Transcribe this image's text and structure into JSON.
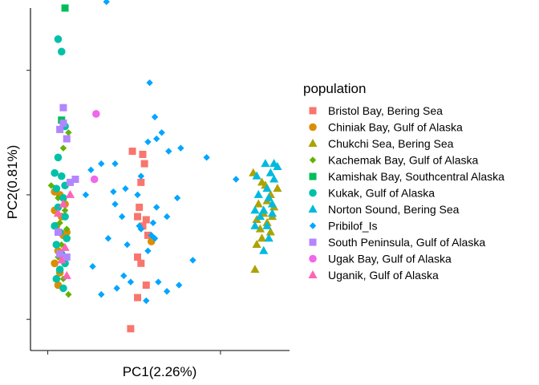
{
  "chart_data": {
    "type": "scatter",
    "xlabel": "PC1(2.26%)",
    "ylabel": "PC2(0.81%)",
    "xlim": [
      -0.1,
      1.4
    ],
    "ylim": [
      -0.1,
      1.0
    ],
    "x_ticks": [
      0.0,
      1.0
    ],
    "y_ticks": [
      0.0,
      0.4,
      0.8
    ],
    "grid": false,
    "legend_title": "population",
    "legend_position": "right",
    "series": [
      {
        "name": "Bristol Bay, Bering Sea",
        "color": "#F8766D",
        "shape": "square",
        "points": [
          [
            0.49,
            0.54
          ],
          [
            0.55,
            0.53
          ],
          [
            0.56,
            0.5
          ],
          [
            0.54,
            0.44
          ],
          [
            0.53,
            0.36
          ],
          [
            0.52,
            0.33
          ],
          [
            0.57,
            0.32
          ],
          [
            0.55,
            0.3
          ],
          [
            0.58,
            0.27
          ],
          [
            0.52,
            0.2
          ],
          [
            0.54,
            0.18
          ],
          [
            0.57,
            0.11
          ],
          [
            0.52,
            0.07
          ],
          [
            0.48,
            -0.03
          ]
        ]
      },
      {
        "name": "Chiniak Bay, Gulf of Alaska",
        "color": "#DB8E00",
        "shape": "circle",
        "points": [
          [
            0.04,
            0.41
          ],
          [
            0.07,
            0.4
          ],
          [
            0.1,
            0.37
          ],
          [
            0.04,
            0.35
          ],
          [
            0.08,
            0.33
          ],
          [
            0.05,
            0.3
          ],
          [
            0.09,
            0.27
          ],
          [
            0.06,
            0.22
          ],
          [
            0.04,
            0.18
          ],
          [
            0.07,
            0.15
          ],
          [
            0.06,
            0.11
          ],
          [
            0.11,
            0.28
          ],
          [
            0.6,
            0.25
          ]
        ]
      },
      {
        "name": "Chukchi Sea, Bering Sea",
        "color": "#AEA200",
        "shape": "triangle",
        "points": [
          [
            1.19,
            0.47
          ],
          [
            1.24,
            0.44
          ],
          [
            1.33,
            0.42
          ],
          [
            1.29,
            0.4
          ],
          [
            1.27,
            0.38
          ],
          [
            1.22,
            0.37
          ],
          [
            1.31,
            0.36
          ],
          [
            1.25,
            0.34
          ],
          [
            1.3,
            0.33
          ],
          [
            1.21,
            0.32
          ],
          [
            1.27,
            0.31
          ],
          [
            1.23,
            0.29
          ],
          [
            1.29,
            0.28
          ],
          [
            1.24,
            0.26
          ],
          [
            1.21,
            0.24
          ],
          [
            1.2,
            0.16
          ],
          [
            1.26,
            0.43
          ]
        ]
      },
      {
        "name": "Kachemak Bay, Gulf of Alaska",
        "color": "#64B200",
        "shape": "diamond",
        "points": [
          [
            0.12,
            0.6
          ],
          [
            0.09,
            0.55
          ],
          [
            0.02,
            0.43
          ],
          [
            0.06,
            0.39
          ],
          [
            0.1,
            0.35
          ],
          [
            0.07,
            0.31
          ],
          [
            0.11,
            0.29
          ],
          [
            0.08,
            0.24
          ],
          [
            0.06,
            0.2
          ],
          [
            0.09,
            0.13
          ],
          [
            0.12,
            0.08
          ]
        ]
      },
      {
        "name": "Kamishak Bay, Southcentral Alaska",
        "color": "#00BD5C",
        "shape": "square",
        "points": [
          [
            0.1,
            1.0
          ],
          [
            0.08,
            0.64
          ]
        ]
      },
      {
        "name": "Kukak, Gulf of Alaska",
        "color": "#00C1A7",
        "shape": "circle",
        "points": [
          [
            0.06,
            0.9
          ],
          [
            0.08,
            0.86
          ],
          [
            0.1,
            0.62
          ],
          [
            0.06,
            0.52
          ],
          [
            0.04,
            0.47
          ],
          [
            0.08,
            0.46
          ],
          [
            0.1,
            0.43
          ],
          [
            0.05,
            0.42
          ],
          [
            0.09,
            0.39
          ],
          [
            0.06,
            0.36
          ],
          [
            0.1,
            0.33
          ],
          [
            0.04,
            0.3
          ],
          [
            0.07,
            0.28
          ],
          [
            0.11,
            0.26
          ],
          [
            0.05,
            0.24
          ],
          [
            0.08,
            0.21
          ],
          [
            0.1,
            0.18
          ],
          [
            0.07,
            0.16
          ],
          [
            0.05,
            0.13
          ],
          [
            0.09,
            0.1
          ]
        ]
      },
      {
        "name": "Norton Sound, Bering Sea",
        "color": "#00BADE",
        "shape": "triangle",
        "points": [
          [
            1.26,
            0.5
          ],
          [
            1.31,
            0.5
          ],
          [
            1.33,
            0.49
          ],
          [
            1.29,
            0.47
          ],
          [
            1.21,
            0.46
          ],
          [
            1.31,
            0.45
          ],
          [
            1.27,
            0.42
          ],
          [
            1.22,
            0.4
          ],
          [
            1.28,
            0.39
          ],
          [
            1.3,
            0.37
          ],
          [
            1.25,
            0.35
          ],
          [
            1.2,
            0.35
          ],
          [
            1.3,
            0.34
          ],
          [
            1.23,
            0.33
          ],
          [
            1.27,
            0.3
          ],
          [
            1.2,
            0.3
          ],
          [
            1.28,
            0.26
          ],
          [
            1.25,
            0.22
          ]
        ]
      },
      {
        "name": "Pribilof_Is",
        "color": "#00A6FF",
        "shape": "diamond",
        "points": [
          [
            0.34,
            1.02
          ],
          [
            0.66,
            1.07
          ],
          [
            0.59,
            0.76
          ],
          [
            0.62,
            0.65
          ],
          [
            0.63,
            0.58
          ],
          [
            0.7,
            0.54
          ],
          [
            0.77,
            0.55
          ],
          [
            0.92,
            0.52
          ],
          [
            0.39,
            0.5
          ],
          [
            0.25,
            0.48
          ],
          [
            0.31,
            0.5
          ],
          [
            0.54,
            0.46
          ],
          [
            0.22,
            0.4
          ],
          [
            0.38,
            0.41
          ],
          [
            0.52,
            0.4
          ],
          [
            1.09,
            0.45
          ],
          [
            0.39,
            0.37
          ],
          [
            0.63,
            0.36
          ],
          [
            0.43,
            0.33
          ],
          [
            0.75,
            0.39
          ],
          [
            0.61,
            0.31
          ],
          [
            0.69,
            0.33
          ],
          [
            0.54,
            0.29
          ],
          [
            0.6,
            0.27
          ],
          [
            0.62,
            0.26
          ],
          [
            0.58,
            0.22
          ],
          [
            0.26,
            0.17
          ],
          [
            0.31,
            0.08
          ],
          [
            0.44,
            0.14
          ],
          [
            0.57,
            0.06
          ],
          [
            0.64,
            0.12
          ],
          [
            0.69,
            0.09
          ],
          [
            0.76,
            0.11
          ],
          [
            0.84,
            0.19
          ],
          [
            0.4,
            0.1
          ],
          [
            0.48,
            0.12
          ],
          [
            0.53,
            0.3
          ],
          [
            0.45,
            0.42
          ],
          [
            0.58,
            0.57
          ],
          [
            0.66,
            0.6
          ],
          [
            0.35,
            0.26
          ],
          [
            0.46,
            0.24
          ]
        ]
      },
      {
        "name": "South Peninsula, Gulf of Alaska",
        "color": "#B385FF",
        "shape": "square",
        "points": [
          [
            0.09,
            0.68
          ],
          [
            0.09,
            0.63
          ],
          [
            0.07,
            0.61
          ],
          [
            0.11,
            0.58
          ],
          [
            0.16,
            0.45
          ],
          [
            0.13,
            0.44
          ],
          [
            0.11,
            0.2
          ],
          [
            0.07,
            0.21
          ],
          [
            0.06,
            0.28
          ]
        ]
      },
      {
        "name": "Ugak Bay, Gulf of Alaska",
        "color": "#EF67EB",
        "shape": "circle",
        "points": [
          [
            0.28,
            0.66
          ],
          [
            0.27,
            0.45
          ]
        ]
      },
      {
        "name": "Uganik, Gulf of Alaska",
        "color": "#FF63B6",
        "shape": "triangle",
        "points": [
          [
            0.13,
            0.4
          ],
          [
            0.09,
            0.37
          ],
          [
            0.06,
            0.34
          ],
          [
            0.1,
            0.23
          ],
          [
            0.11,
            0.14
          ],
          [
            0.08,
            0.19
          ]
        ]
      }
    ]
  }
}
